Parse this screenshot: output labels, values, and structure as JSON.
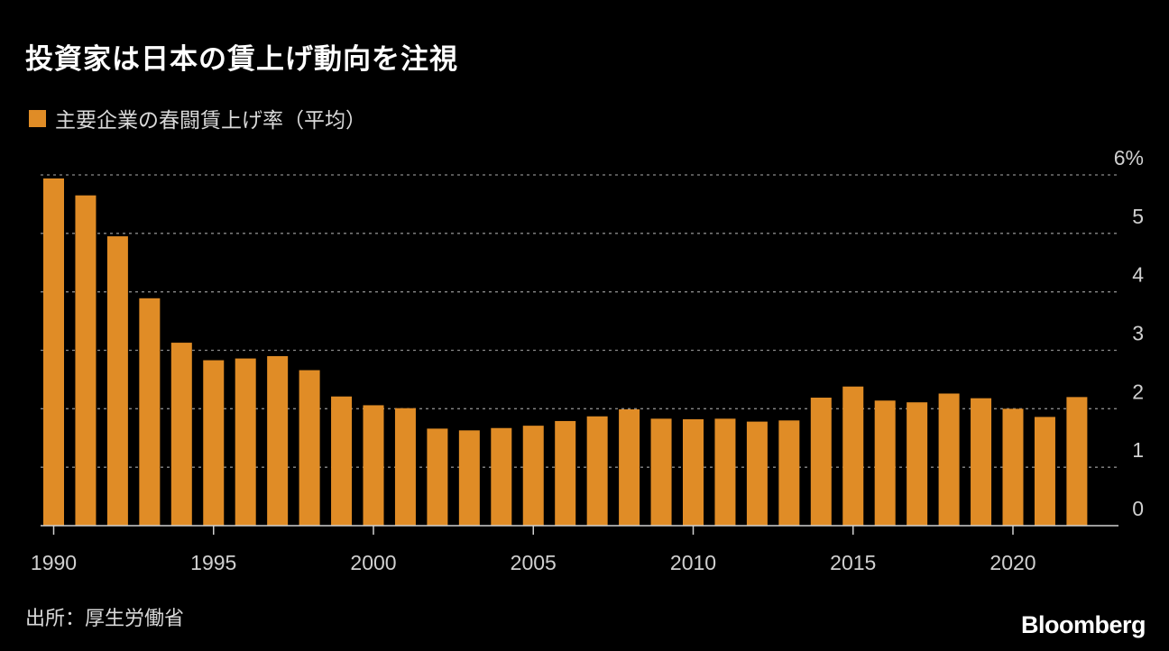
{
  "title": "投資家は日本の賃上げ動向を注視",
  "legend": {
    "label": "主要企業の春闘賃上げ率（平均）",
    "color": "#e08c26"
  },
  "source": "出所：厚生労働省",
  "logo": "Bloomberg",
  "chart_data": {
    "type": "bar",
    "x": [
      1990,
      1991,
      1992,
      1993,
      1994,
      1995,
      1996,
      1997,
      1998,
      1999,
      2000,
      2001,
      2002,
      2003,
      2004,
      2005,
      2006,
      2007,
      2008,
      2009,
      2010,
      2011,
      2012,
      2013,
      2014,
      2015,
      2016,
      2017,
      2018,
      2019,
      2020,
      2021,
      2022
    ],
    "values": [
      5.94,
      5.65,
      4.95,
      3.89,
      3.13,
      2.83,
      2.86,
      2.9,
      2.66,
      2.21,
      2.06,
      2.01,
      1.66,
      1.63,
      1.67,
      1.71,
      1.79,
      1.87,
      1.99,
      1.83,
      1.82,
      1.83,
      1.78,
      1.8,
      2.19,
      2.38,
      2.14,
      2.11,
      2.26,
      2.18,
      2.0,
      1.86,
      2.2
    ],
    "x_tick_labels": [
      "1990",
      "1995",
      "2000",
      "2005",
      "2010",
      "2015",
      "2020"
    ],
    "y_ticks": [
      0,
      1,
      2,
      3,
      4,
      5,
      6
    ],
    "y_tick_labels": [
      "0",
      "1",
      "2",
      "3",
      "4",
      "5",
      "6%"
    ],
    "ylim": [
      0,
      6
    ],
    "grid": true,
    "bar_color": "#e08c26",
    "axis_position": "right"
  }
}
